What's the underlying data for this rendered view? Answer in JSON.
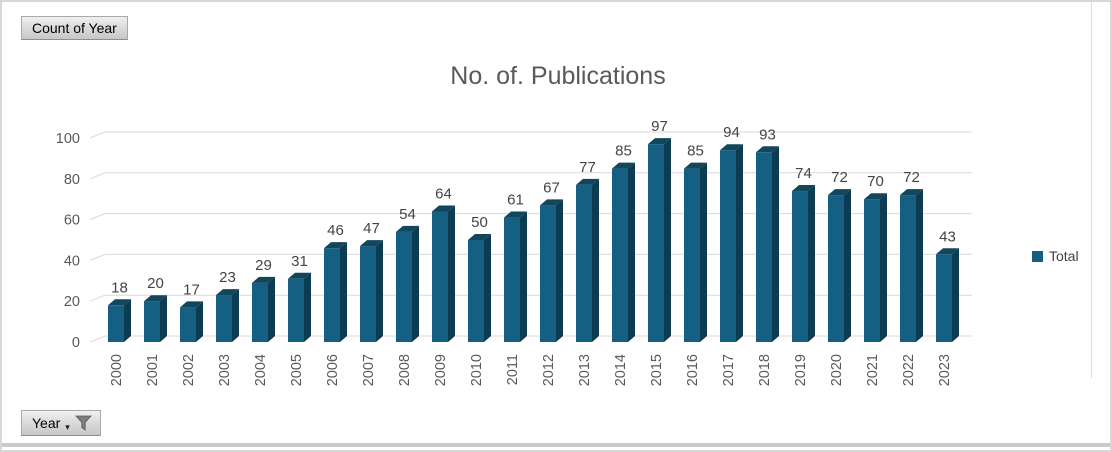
{
  "field_buttons": {
    "value_button_label": "Count of Year",
    "axis_button_label": "Year"
  },
  "legend": {
    "label": "Total"
  },
  "chart_data": {
    "type": "bar",
    "style": "3d-column",
    "title": "No. of. Publications",
    "series_name": "Total",
    "categories": [
      "2000",
      "2001",
      "2002",
      "2003",
      "2004",
      "2005",
      "2006",
      "2007",
      "2008",
      "2009",
      "2010",
      "2011",
      "2012",
      "2013",
      "2014",
      "2015",
      "2016",
      "2017",
      "2018",
      "2019",
      "2020",
      "2021",
      "2022",
      "2023"
    ],
    "values": [
      18,
      20,
      17,
      23,
      29,
      31,
      46,
      47,
      54,
      64,
      50,
      61,
      67,
      77,
      85,
      97,
      85,
      94,
      93,
      74,
      72,
      70,
      72,
      43
    ],
    "xlabel": "Year",
    "ylabel": "",
    "ylim": [
      0,
      100
    ],
    "yticks": [
      0,
      20,
      40,
      60,
      80,
      100
    ],
    "grid": true,
    "legend_position": "right",
    "data_labels": true
  },
  "colors": {
    "bar_front": "#156082",
    "bar_top": "#11465d",
    "bar_side": "#0d3b52",
    "gridline": "#d9d9d9",
    "axis_text": "#595959",
    "data_label_text": "#444444",
    "title_text": "#595959",
    "legend_text": "#404040",
    "funnel_icon": "#7d7d7d"
  }
}
